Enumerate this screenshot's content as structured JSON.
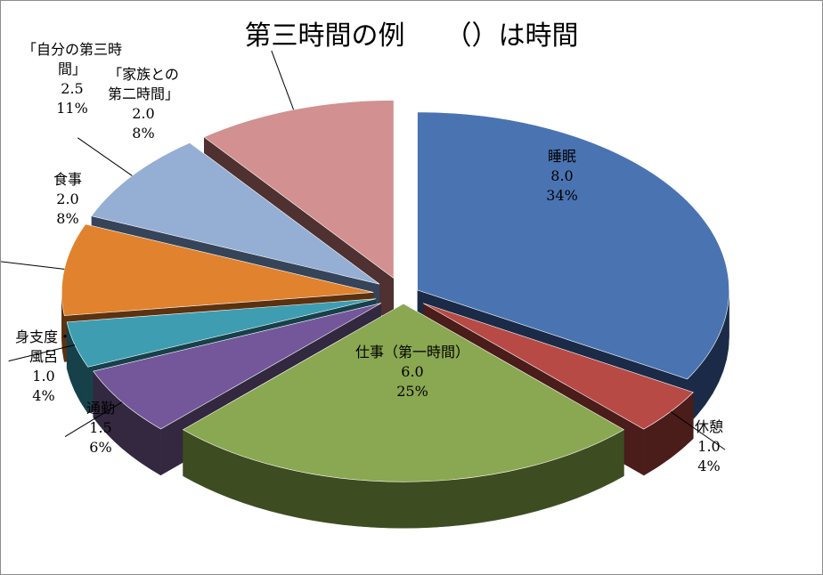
{
  "chart_data": {
    "type": "pie",
    "title": "第三時間の例　　（）は時間",
    "slices": [
      {
        "label": "睡眠",
        "value": 8.0,
        "percent": "34%",
        "color": "#4a73b2",
        "side": "#1b2b47",
        "explode": 18
      },
      {
        "label": "休憩",
        "value": 1.0,
        "percent": "4%",
        "color": "#b84a46",
        "side": "#4a1c1a",
        "explode": 28
      },
      {
        "label": "仕事（第一時間）",
        "value": 6.0,
        "percent": "25%",
        "color": "#8aa751",
        "side": "#3e4c22",
        "explode": 18
      },
      {
        "label": "通勤",
        "value": 1.5,
        "percent": "6%",
        "color": "#73579a",
        "side": "#33283f",
        "explode": 30
      },
      {
        "label": "身支度・風呂",
        "value": 1.0,
        "percent": "4%",
        "color": "#3e9db0",
        "side": "#17414a",
        "explode": 32
      },
      {
        "label": "食事",
        "value": 2.0,
        "percent": "8%",
        "color": "#e0822e",
        "side": "#5c3210",
        "explode": 34
      },
      {
        "label": "「家族との第二時間」",
        "value": 2.0,
        "percent": "8%",
        "color": "#95aed4",
        "side": "#36445a",
        "explode": 34
      },
      {
        "label": "「自分の第三時間」",
        "value": 2.5,
        "percent": "11%",
        "color": "#d29090",
        "side": "#4f3131",
        "explode": 34
      }
    ],
    "label_lines": [
      {
        "slice": 0,
        "lines": [
          "睡眠",
          "8.0",
          "34%"
        ],
        "align": "middle"
      },
      {
        "slice": 1,
        "lines": [
          "休憩",
          "1.0",
          "4%"
        ],
        "align": "middle"
      },
      {
        "slice": 2,
        "lines": [
          "仕事（第一時間）",
          "6.0",
          "25%"
        ],
        "align": "middle"
      },
      {
        "slice": 3,
        "lines": [
          "通勤",
          "1.5",
          "6%"
        ],
        "align": "middle"
      },
      {
        "slice": 4,
        "lines": [
          "身支度・",
          "風呂",
          "1.0",
          "4%"
        ],
        "align": "middle"
      },
      {
        "slice": 5,
        "lines": [
          "食事",
          "2.0",
          "8%"
        ],
        "align": "middle"
      },
      {
        "slice": 6,
        "lines": [
          "「家族との",
          "第二時間」",
          "2.0",
          "8%"
        ],
        "align": "middle"
      },
      {
        "slice": 7,
        "lines": [
          "「自分の第三時",
          "間」",
          "2.5",
          "11%"
        ],
        "align": "middle"
      }
    ]
  }
}
